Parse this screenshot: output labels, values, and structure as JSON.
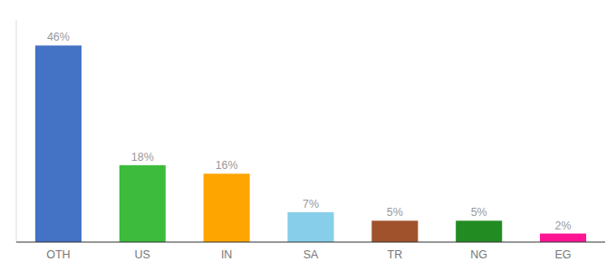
{
  "chart_data": {
    "type": "bar",
    "categories": [
      "OTH",
      "US",
      "IN",
      "SA",
      "TR",
      "NG",
      "EG"
    ],
    "values": [
      46,
      18,
      16,
      7,
      5,
      5,
      2
    ],
    "value_labels": [
      "46%",
      "18%",
      "16%",
      "7%",
      "5%",
      "5%",
      "2%"
    ],
    "colors": [
      "#4472c4",
      "#3dbb3d",
      "#ffa500",
      "#87ceeb",
      "#a0522d",
      "#228b22",
      "#ff1493"
    ],
    "ylim": [
      0,
      52
    ],
    "data_labels": true,
    "tick_labels": "x",
    "grid": false
  }
}
